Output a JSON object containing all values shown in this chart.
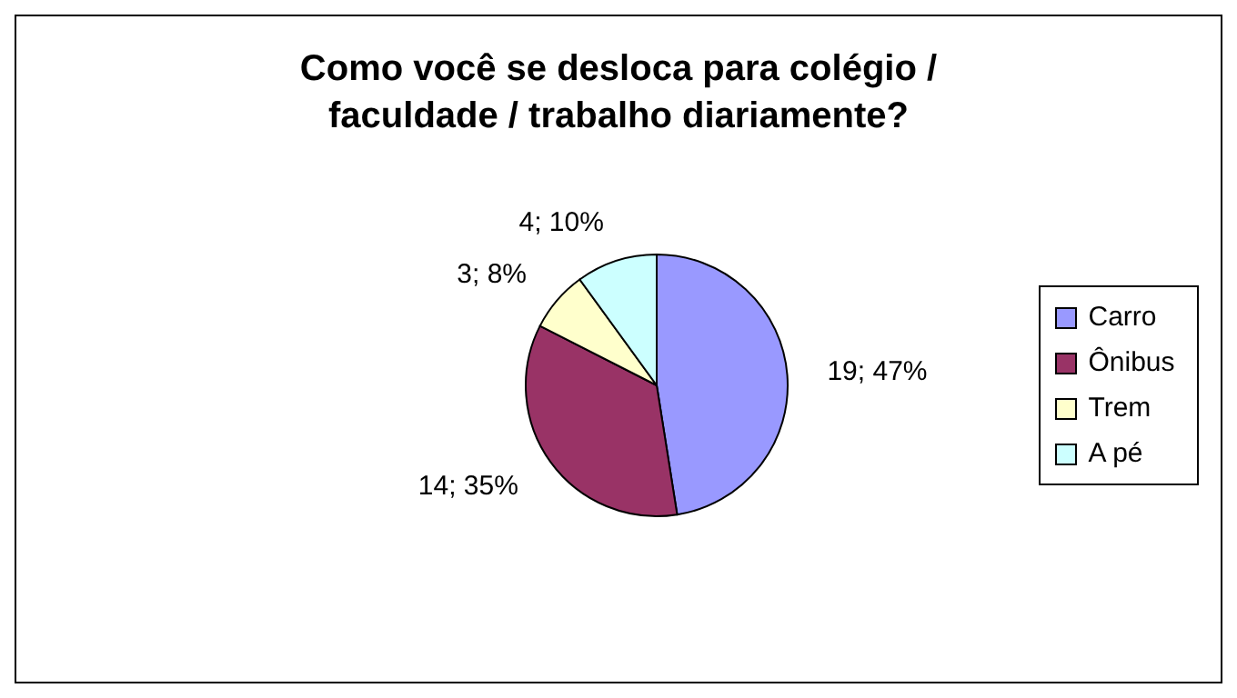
{
  "chart_data": {
    "type": "pie",
    "title": "Como você se desloca para colégio / faculdade / trabalho diariamente?",
    "categories": [
      "Carro",
      "Ônibus",
      "Trem",
      "A pé"
    ],
    "values": [
      19,
      14,
      3,
      4
    ],
    "colors": [
      "#9999ff",
      "#993366",
      "#ffffcc",
      "#ccffff"
    ],
    "value_labels": [
      "19; 47%",
      "14; 35%",
      "3; 8%",
      "4; 10%"
    ],
    "legend": "right"
  }
}
